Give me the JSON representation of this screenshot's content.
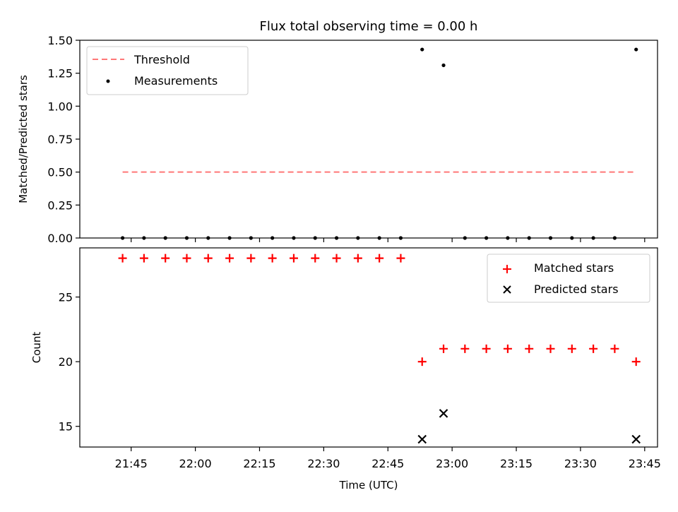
{
  "figure": {
    "title": "Flux total observing time = 0.00 h",
    "xlabel": "Time (UTC)"
  },
  "chart_data": [
    {
      "type": "scatter",
      "ylabel": "Matched/Predicted stars",
      "ylim": [
        0,
        1.5
      ],
      "yticks": [
        "0.00",
        "0.25",
        "0.50",
        "0.75",
        "1.00",
        "1.25",
        "1.50"
      ],
      "ytick_values": [
        0,
        0.25,
        0.5,
        0.75,
        1.0,
        1.25,
        1.5
      ],
      "legend_position": "top-left",
      "threshold": {
        "name": "Threshold",
        "value": 0.5,
        "x_start": "21:43",
        "x_end": "23:43",
        "color": "#ff7777"
      },
      "series": [
        {
          "name": "Measurements",
          "color": "#000000",
          "x": [
            "21:43",
            "21:48",
            "21:53",
            "21:58",
            "22:03",
            "22:08",
            "22:13",
            "22:18",
            "22:23",
            "22:28",
            "22:33",
            "22:38",
            "22:43",
            "22:48",
            "22:53",
            "22:58",
            "23:03",
            "23:08",
            "23:13",
            "23:18",
            "23:23",
            "23:28",
            "23:33",
            "23:38",
            "23:43"
          ],
          "y": [
            0,
            0,
            0,
            0,
            0,
            0,
            0,
            0,
            0,
            0,
            0,
            0,
            0,
            0,
            1.43,
            1.31,
            0,
            0,
            0,
            0,
            0,
            0,
            0,
            0,
            1.43
          ]
        }
      ]
    },
    {
      "type": "scatter",
      "ylabel": "Count",
      "ylim": [
        13.4,
        28.8
      ],
      "yticks": [
        "15",
        "20",
        "25"
      ],
      "ytick_values": [
        15,
        20,
        25
      ],
      "legend_position": "top-right",
      "series": [
        {
          "name": "Matched stars",
          "marker": "plus",
          "color": "#ff0000",
          "x": [
            "21:43",
            "21:48",
            "21:53",
            "21:58",
            "22:03",
            "22:08",
            "22:13",
            "22:18",
            "22:23",
            "22:28",
            "22:33",
            "22:38",
            "22:43",
            "22:48",
            "22:53",
            "22:58",
            "23:03",
            "23:08",
            "23:13",
            "23:18",
            "23:23",
            "23:28",
            "23:33",
            "23:38",
            "23:43"
          ],
          "y": [
            28,
            28,
            28,
            28,
            28,
            28,
            28,
            28,
            28,
            28,
            28,
            28,
            28,
            28,
            20,
            21,
            21,
            21,
            21,
            21,
            21,
            21,
            21,
            21,
            20
          ]
        },
        {
          "name": "Predicted stars",
          "marker": "x",
          "color": "#000000",
          "x": [
            "22:53",
            "22:58",
            "23:43"
          ],
          "y": [
            14,
            16,
            14
          ]
        }
      ]
    }
  ],
  "x_axis": {
    "range": [
      "21:33",
      "23:48"
    ],
    "ticks": [
      "21:45",
      "22:00",
      "22:15",
      "22:30",
      "22:45",
      "23:00",
      "23:15",
      "23:30",
      "23:45"
    ]
  }
}
